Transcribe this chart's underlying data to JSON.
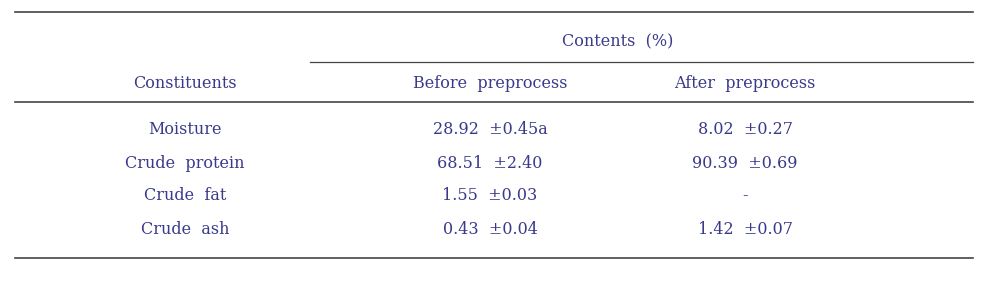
{
  "col_header_top": "Contents  (%)",
  "col_header_left": "Constituents",
  "col_header_sub": [
    "Before  preprocess",
    "After  preprocess"
  ],
  "rows": [
    [
      "Moisture",
      "28.92  ±0.45a",
      "8.02  ±0.27"
    ],
    [
      "Crude  protein",
      "68.51  ±2.40",
      "90.39  ±0.69"
    ],
    [
      "Crude  fat",
      "1.55  ±0.03",
      "-"
    ],
    [
      "Crude  ash",
      "0.43  ±0.04",
      "1.42  ±0.07"
    ]
  ],
  "text_color": "#3a3a8c",
  "line_color": "#444444",
  "bg_color": "#ffffff",
  "font_size": 11.5
}
